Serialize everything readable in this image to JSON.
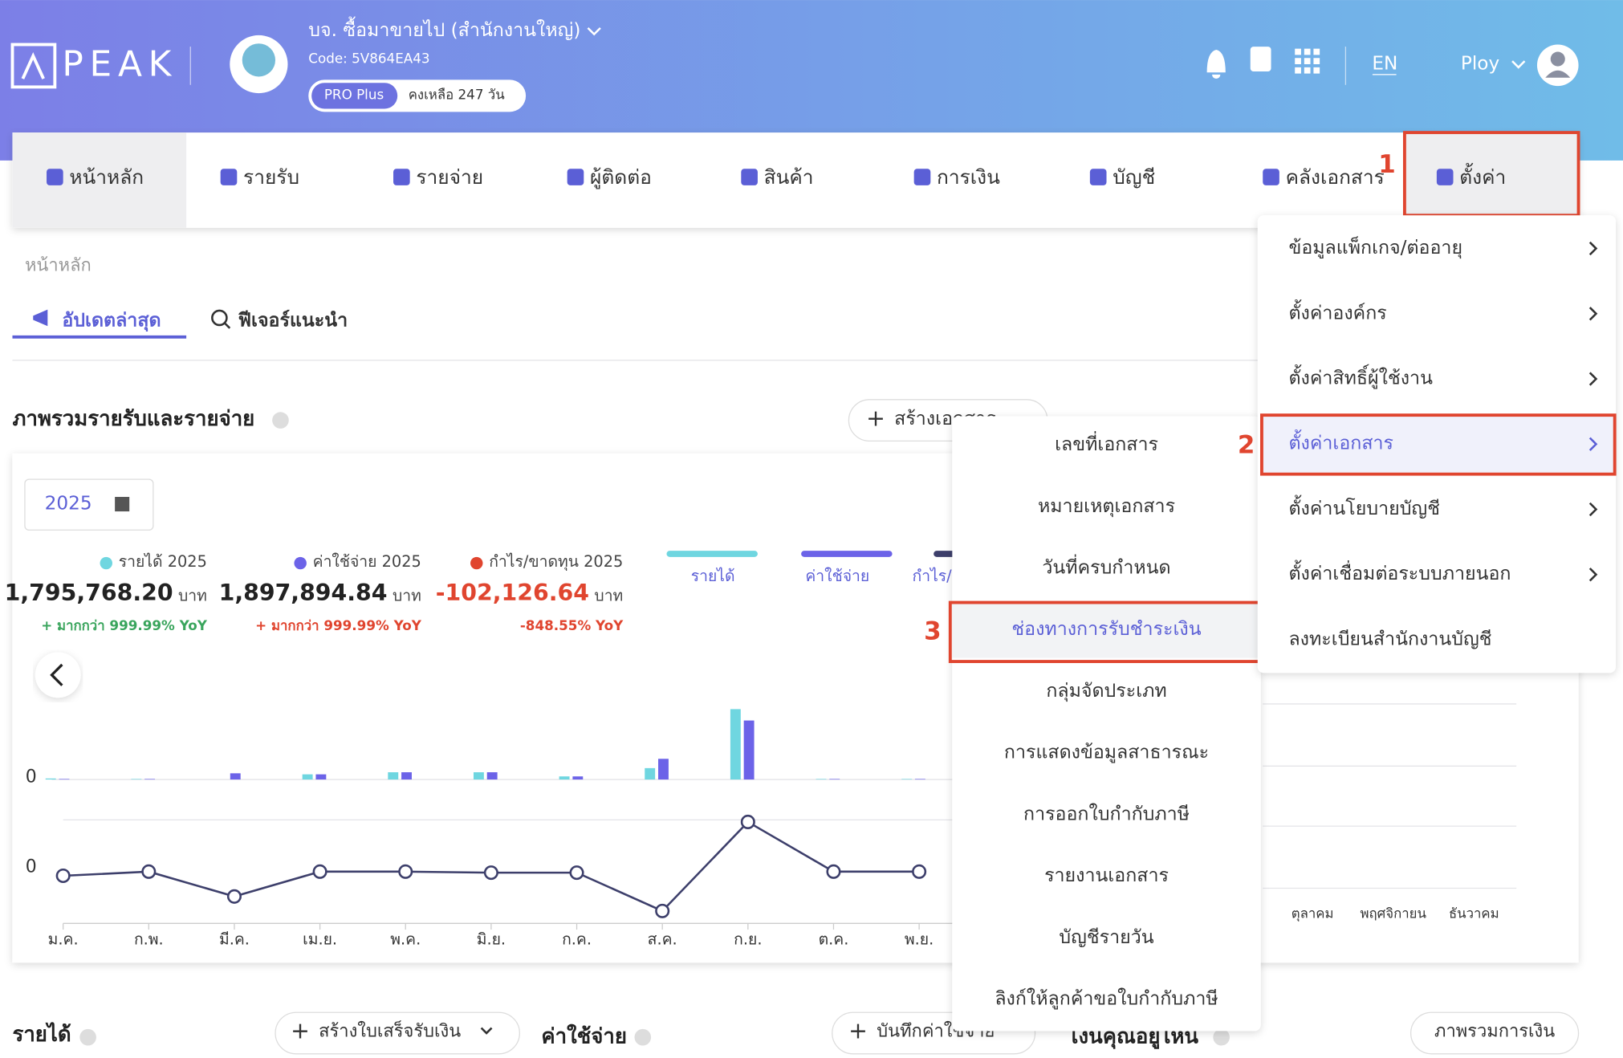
{
  "header": {
    "brand": "PEAK",
    "company": "บจ. ซื้อมาขายไป (สำนักงานใหญ่)",
    "code": "Code: 5V864EA43",
    "plan": "PRO Plus",
    "remaining": "คงเหลือ 247 วัน",
    "language": "EN",
    "user": "Ploy"
  },
  "nav": [
    "หน้าหลัก",
    "รายรับ",
    "รายจ่าย",
    "ผู้ติดต่อ",
    "สินค้า",
    "การเงิน",
    "บัญชี",
    "คลังเอกสาร",
    "ตั้งค่า"
  ],
  "breadcrumb": "หน้าหลัก",
  "tabs": [
    "อัปเดตล่าสุด",
    "ฟีเจอร์แนะนำ"
  ],
  "overview": {
    "title": "ภาพรวมรายรับและรายจ่าย",
    "create_button": "สร้างเอกสาร",
    "year": "2025",
    "stats": [
      {
        "label": "รายได้ 2025",
        "amount": "1,795,768.20",
        "unit": "บาท",
        "change": "+ มากกว่า 999.99% YoY"
      },
      {
        "label": "ค่าใช้จ่าย 2025",
        "amount": "1,897,894.84",
        "unit": "บาท",
        "change": "+ มากกว่า 999.99% YoY"
      },
      {
        "label": "กำไร/ขาดทุน 2025",
        "amount": "-102,126.64",
        "unit": "บาท",
        "change": "-848.55% YoY"
      }
    ]
  },
  "chart_data": [
    {
      "type": "bar",
      "ylim": [
        0,
        70
      ],
      "yticks": [
        0
      ],
      "series": [
        {
          "name": "รายได้",
          "color": "#6fd6e0",
          "values": [
            1,
            0.5,
            0,
            5,
            7,
            7,
            3,
            11,
            68,
            0.5,
            0.5
          ]
        },
        {
          "name": "ค่าใช้จ่าย",
          "color": "#6c63e8",
          "values": [
            0.5,
            0.5,
            6,
            5,
            7,
            7,
            3,
            20,
            57,
            0.5,
            0.5
          ]
        }
      ]
    },
    {
      "type": "line",
      "categories": [
        "ม.ค.",
        "ก.พ.",
        "มี.ค.",
        "เม.ย.",
        "พ.ค.",
        "มิ.ย.",
        "ก.ค.",
        "ส.ค.",
        "ก.ย.",
        "ต.ค.",
        "พ.ย."
      ],
      "ylim": [
        -50,
        50
      ],
      "yticks": [
        0
      ],
      "series": [
        {
          "name": "กำไร/ขาดทุน",
          "color": "#3d3f6b",
          "values": [
            -4,
            0,
            -24,
            0,
            0,
            -1,
            -1,
            -38,
            48,
            0,
            0
          ]
        }
      ]
    }
  ],
  "partial_chart": {
    "months": [
      "ตุลาคม",
      "พฤศจิกายน",
      "ธันวาคม"
    ]
  },
  "settings_menu": [
    "ข้อมูลแพ็กเกจ/ต่ออายุ",
    "ตั้งค่าองค์กร",
    "ตั้งค่าสิทธิ์ผู้ใช้งาน",
    "ตั้งค่าเอกสาร",
    "ตั้งค่านโยบายบัญชี",
    "ตั้งค่าเชื่อมต่อระบบภายนอก",
    "ลงทะเบียนสำนักงานบัญชี"
  ],
  "document_submenu": [
    "เลขที่เอกสาร",
    "หมายเหตุเอกสาร",
    "วันที่ครบกำหนด",
    "ช่องทางการรับชำระเงิน",
    "กลุ่มจัดประเภท",
    "การแสดงข้อมูลสาธารณะ",
    "การออกใบกำกับภาษี",
    "รายงานเอกสาร",
    "บัญชีรายวัน",
    "ลิงก์ให้ลูกค้าขอใบกำกับภาษี"
  ],
  "steps": [
    "1",
    "2",
    "3"
  ],
  "bottom": {
    "income": "รายได้",
    "receipt_button": "สร้างใบเสร็จรับเงิน",
    "expense": "ค่าใช้จ่าย",
    "expense_button": "บันทึกค่าใช้จ่าย",
    "money": "เงินคุณอยู่ไหน",
    "finance_button": "ภาพรวมการเงิน"
  }
}
